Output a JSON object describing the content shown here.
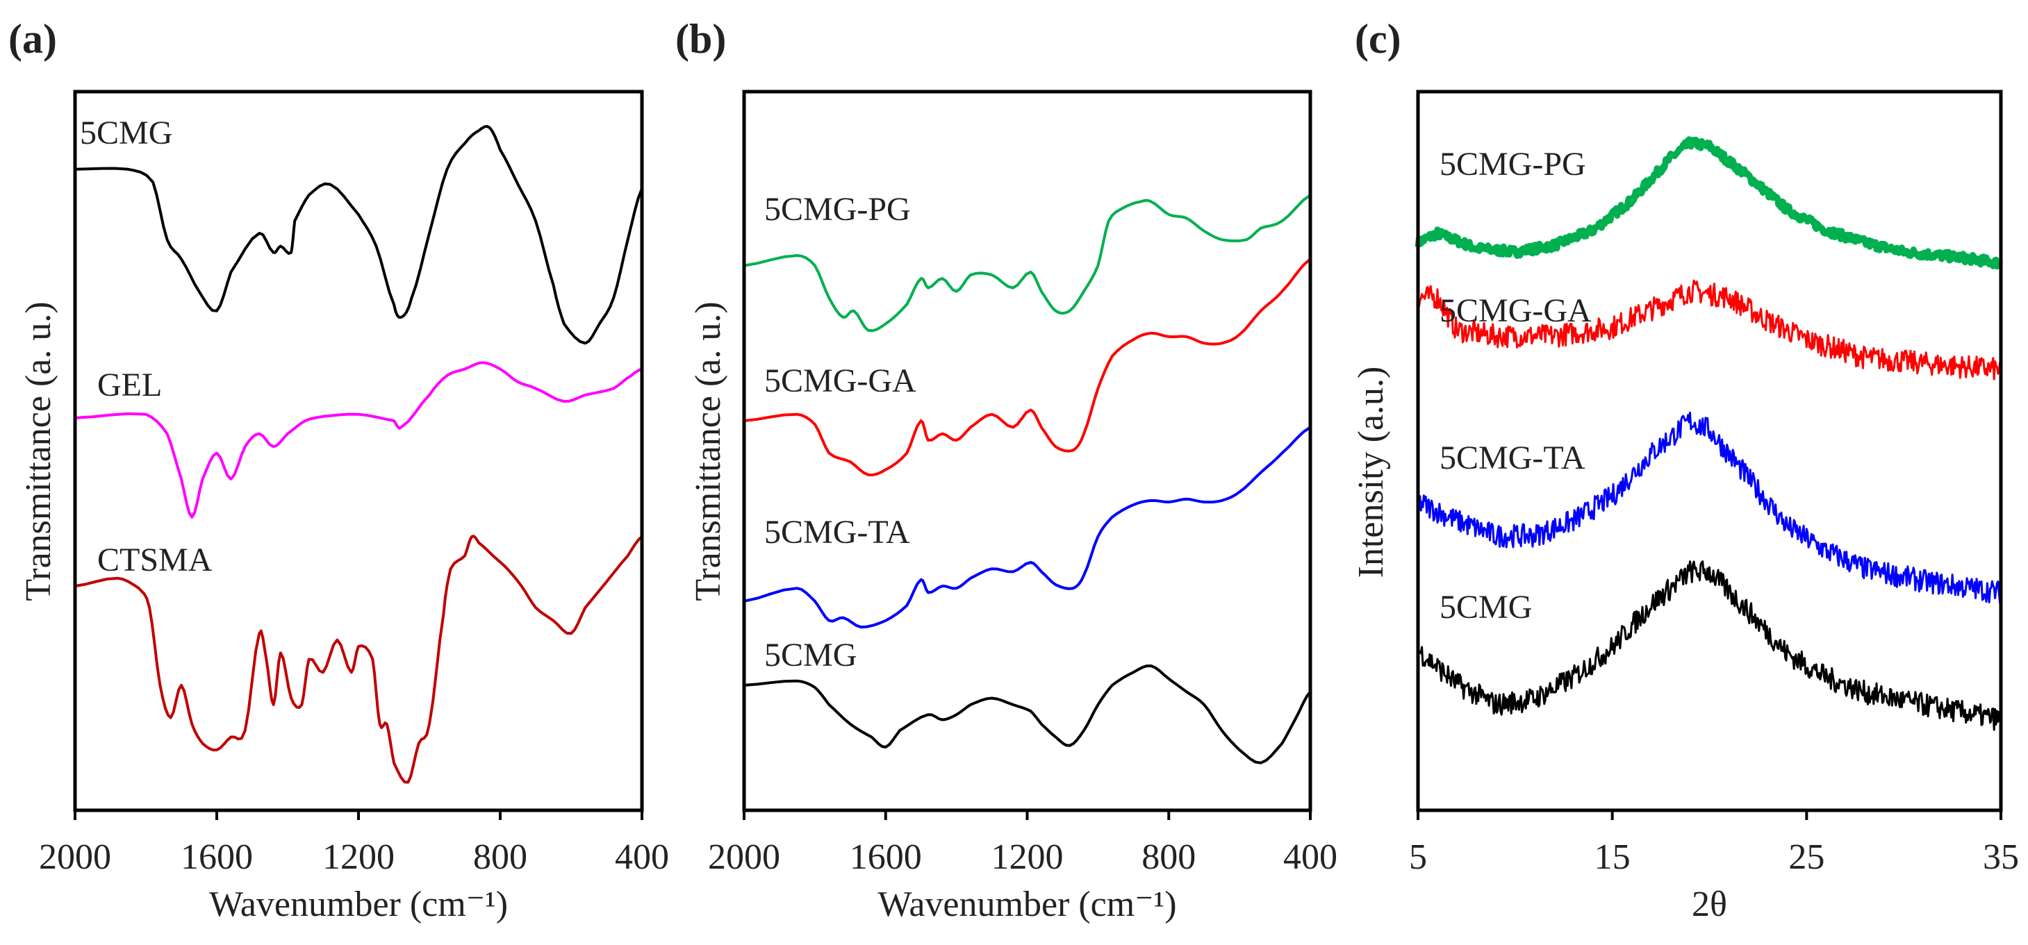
{
  "chart_data": [
    {
      "panel": "(a)",
      "type": "line",
      "xlabel": "Wavenumber (cm⁻¹)",
      "ylabel": "Transmittance (a. u.)",
      "xlim": [
        2000,
        400
      ],
      "ylim": [
        0,
        100
      ],
      "xticks": [
        "2000",
        "1600",
        "1200",
        "800",
        "400"
      ],
      "xtick_values": [
        2000,
        1600,
        1200,
        800,
        400
      ],
      "series": [
        {
          "name": "5CMG",
          "color": "#000000",
          "x": [
            2000,
            1850,
            1780,
            1740,
            1700,
            1650,
            1600,
            1560,
            1480,
            1440,
            1420,
            1390,
            1380,
            1340,
            1280,
            1200,
            1150,
            1100,
            1080,
            1050,
            1000,
            950,
            900,
            860,
            830,
            800,
            750,
            700,
            650,
            620,
            560,
            520,
            480,
            440,
            400
          ],
          "y": [
            89.2,
            89.2,
            87.4,
            79.4,
            76.7,
            72.2,
            69.5,
            74.9,
            80.3,
            77.6,
            78.5,
            77.6,
            82,
            85.6,
            87.1,
            82.9,
            78.5,
            70.4,
            68.6,
            71.3,
            80.3,
            89.2,
            92.8,
            94.6,
            95,
            91.9,
            87.1,
            82,
            73.1,
            67.7,
            65,
            67.7,
            71.3,
            79.4,
            86.5
          ]
        },
        {
          "name": "GEL",
          "color": "#ff00ff",
          "x": [
            2000,
            1800,
            1740,
            1700,
            1670,
            1640,
            1600,
            1560,
            1520,
            1480,
            1440,
            1400,
            1350,
            1300,
            1200,
            1100,
            1080,
            1000,
            950,
            900,
            850,
            800,
            750,
            700,
            620,
            560,
            480,
            430,
            400
          ],
          "y": [
            54.6,
            55.1,
            52.4,
            46.1,
            40.8,
            46.1,
            49.7,
            46.1,
            50.6,
            52.4,
            50.6,
            52.4,
            54.2,
            54.8,
            55.1,
            54.2,
            53.3,
            57.8,
            60.5,
            61.4,
            62.3,
            61.4,
            59.6,
            58.7,
            56.9,
            57.8,
            58.7,
            60.5,
            61.4
          ]
        },
        {
          "name": "CTSMA",
          "color": "#c00000",
          "x": [
            2000,
            1880,
            1820,
            1790,
            1760,
            1730,
            1700,
            1670,
            1640,
            1600,
            1560,
            1520,
            1480,
            1460,
            1440,
            1420,
            1390,
            1360,
            1340,
            1300,
            1260,
            1220,
            1200,
            1160,
            1140,
            1120,
            1100,
            1060,
            1030,
            1000,
            960,
            940,
            900,
            880,
            860,
            820,
            780,
            740,
            700,
            650,
            600,
            560,
            500,
            440,
            400
          ],
          "y": [
            31.2,
            32.3,
            30.9,
            28.2,
            17.4,
            12.9,
            17.4,
            12,
            9.3,
            8.4,
            10.2,
            11.1,
            24.6,
            21,
            14.7,
            21.9,
            15.6,
            14.7,
            21,
            19.2,
            23.7,
            19.2,
            22.8,
            21,
            12,
            12,
            6.6,
            3.9,
            9.3,
            12,
            27.3,
            33.6,
            35.4,
            38.1,
            37.2,
            35.4,
            33.6,
            31.2,
            28.2,
            26.4,
            24.6,
            28.2,
            31.8,
            35.4,
            38.1
          ]
        }
      ]
    },
    {
      "panel": "(b)",
      "type": "line",
      "xlabel": "Wavenumber (cm⁻¹)",
      "ylabel": "Transmittance (a. u.)",
      "xlim": [
        2000,
        400
      ],
      "ylim": [
        0,
        100
      ],
      "xticks": [
        "2000",
        "1600",
        "1200",
        "800",
        "400"
      ],
      "xtick_values": [
        2000,
        1600,
        1200,
        800,
        400
      ],
      "series": [
        {
          "name": "5CMG-PG",
          "color": "#00b050",
          "x": [
            2000,
            1850,
            1800,
            1760,
            1720,
            1690,
            1650,
            1600,
            1540,
            1500,
            1480,
            1440,
            1400,
            1360,
            1300,
            1240,
            1190,
            1160,
            1120,
            1080,
            1040,
            1000,
            970,
            930,
            880,
            850,
            800,
            750,
            700,
            650,
            580,
            540,
            480,
            400
          ],
          "y": [
            75.8,
            77.2,
            75.8,
            71.3,
            68.6,
            69.5,
            66.8,
            67.7,
            70.4,
            74,
            72.7,
            74,
            72.2,
            74.5,
            74.5,
            72.7,
            74.9,
            72.2,
            69.5,
            69.5,
            72.2,
            75.8,
            82,
            83.8,
            84.7,
            84.7,
            82.9,
            82.4,
            80.6,
            79.4,
            79.4,
            81,
            82,
            85.6
          ]
        },
        {
          "name": "5CMG-GA",
          "color": "#ff0000",
          "x": [
            2000,
            1850,
            1800,
            1760,
            1700,
            1650,
            1600,
            1540,
            1500,
            1480,
            1440,
            1400,
            1360,
            1300,
            1240,
            1190,
            1160,
            1120,
            1070,
            1040,
            1000,
            960,
            900,
            850,
            800,
            750,
            700,
            650,
            600,
            540,
            480,
            400
          ],
          "y": [
            54.2,
            55.1,
            53.7,
            49.7,
            48.5,
            46.7,
            47.4,
            49.7,
            54.2,
            51.5,
            52.4,
            51.5,
            53.3,
            55.1,
            53.3,
            55.7,
            53.3,
            50.6,
            50.1,
            52.4,
            58.7,
            63.2,
            65.5,
            66.4,
            65.9,
            65.9,
            65,
            65,
            66.2,
            69.5,
            72.2,
            76.7
          ]
        },
        {
          "name": "5CMG-TA",
          "color": "#0000ff",
          "x": [
            2000,
            1850,
            1800,
            1760,
            1720,
            1670,
            1600,
            1540,
            1500,
            1480,
            1440,
            1400,
            1360,
            1300,
            1240,
            1190,
            1160,
            1120,
            1070,
            1040,
            1000,
            960,
            900,
            850,
            800,
            750,
            700,
            650,
            600,
            540,
            480,
            400
          ],
          "y": [
            29.1,
            30.9,
            29.1,
            26.4,
            26.8,
            25.5,
            26.4,
            28.5,
            32.1,
            30.3,
            31.2,
            30.9,
            32.3,
            33.6,
            33.2,
            34.5,
            33.2,
            31.4,
            30.9,
            32.7,
            38.1,
            40.8,
            42.5,
            43.1,
            42.9,
            43.3,
            42.9,
            43.1,
            44.3,
            47,
            49.7,
            53.3
          ]
        },
        {
          "name": "5CMG",
          "color": "#000000",
          "x": [
            2000,
            1850,
            1800,
            1760,
            1700,
            1640,
            1600,
            1560,
            1480,
            1440,
            1400,
            1360,
            1300,
            1240,
            1190,
            1160,
            1120,
            1080,
            1040,
            1000,
            960,
            900,
            850,
            800,
            750,
            700,
            650,
            600,
            540,
            480,
            440,
            400
          ],
          "y": [
            17.4,
            18,
            17.1,
            14.7,
            12,
            10.2,
            8.8,
            11.1,
            13.3,
            12.6,
            13.3,
            14.7,
            15.6,
            14.7,
            13.8,
            12,
            10.2,
            9,
            11.1,
            14.7,
            17.4,
            19.2,
            20.1,
            18.3,
            16.5,
            14.7,
            11.1,
            8.4,
            6.6,
            9.3,
            12.9,
            16.5
          ]
        }
      ]
    },
    {
      "panel": "(c)",
      "type": "line",
      "xlabel": "2θ",
      "ylabel": "Intensity (a.u.)",
      "xlim": [
        5,
        35
      ],
      "ylim": [
        0,
        100
      ],
      "xticks": [
        "5",
        "15",
        "25",
        "35"
      ],
      "xtick_values": [
        5,
        15,
        25,
        35
      ],
      "series": [
        {
          "name": "5CMG-PG",
          "color": "#00b050",
          "x": [
            5,
            6,
            8,
            10,
            12,
            14,
            16,
            18,
            19,
            20,
            22,
            24,
            26,
            28,
            30,
            33,
            35
          ],
          "y": [
            79,
            80.3,
            78.2,
            77.7,
            78.6,
            80.7,
            84.9,
            90.8,
            92.9,
            92.4,
            88.2,
            83.6,
            80.7,
            79,
            77.7,
            76.9,
            76.1
          ]
        },
        {
          "name": "5CMG-GA",
          "color": "#ff0000",
          "x": [
            5,
            6,
            7,
            9,
            12,
            15,
            17,
            19,
            21,
            23,
            25,
            28,
            31,
            35
          ],
          "y": [
            71.4,
            71.4,
            66.8,
            66,
            66,
            67.2,
            69.7,
            72.3,
            71.4,
            68.1,
            65.5,
            63,
            62.2,
            61.3
          ]
        },
        {
          "name": "5CMG-TA",
          "color": "#0000ff",
          "x": [
            5,
            7,
            9,
            11,
            13,
            15,
            17,
            19,
            20,
            22,
            24,
            26,
            28,
            31,
            35
          ],
          "y": [
            42.9,
            40.3,
            38.2,
            38.2,
            40.3,
            43.7,
            49.6,
            54.2,
            52.9,
            46.2,
            39.5,
            36.1,
            33.6,
            31.9,
            30.3
          ]
        },
        {
          "name": "5CMG",
          "color": "#000000",
          "x": [
            5,
            7,
            9,
            11,
            13,
            15,
            17,
            19,
            20,
            22,
            24,
            26,
            28,
            31,
            35
          ],
          "y": [
            22.3,
            17.6,
            14.7,
            15.5,
            18.5,
            22.7,
            28.6,
            33.2,
            33.2,
            27.7,
            21.8,
            18.5,
            16.4,
            14.7,
            12.6
          ]
        }
      ]
    }
  ]
}
